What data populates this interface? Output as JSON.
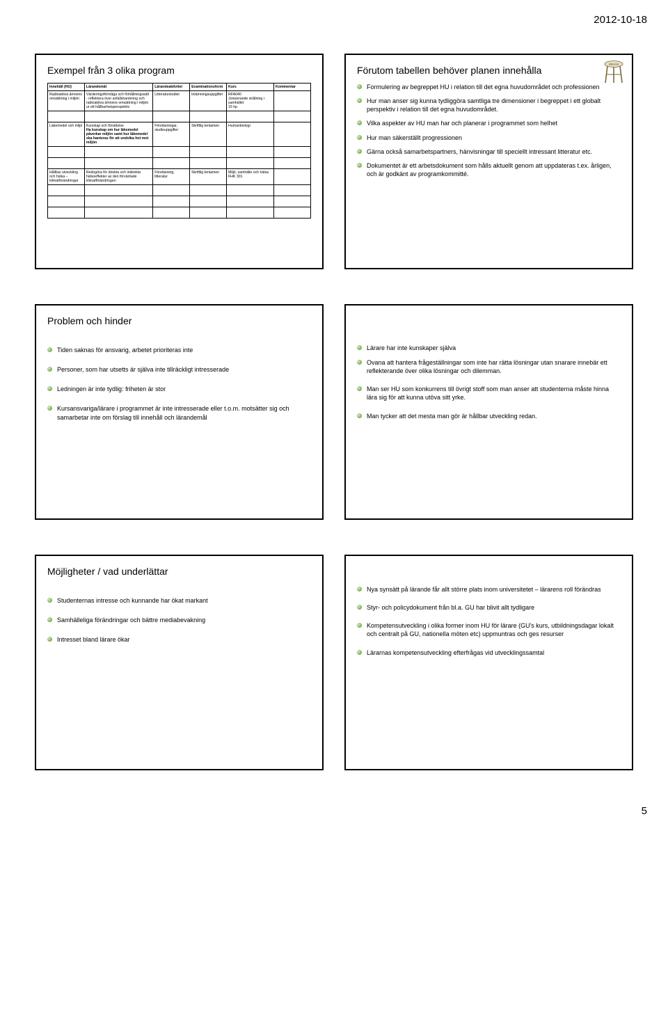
{
  "header": {
    "date": "2012-10-18"
  },
  "footer": {
    "page": "5"
  },
  "slide1": {
    "title": "Exempel från 3 olika program",
    "columns": [
      "Innehåll (HU)",
      "Lärandemål",
      "Lärandeaktivitet",
      "Examinationsform",
      "Kurs",
      "Kommentar"
    ],
    "rows": [
      [
        "Radioaktiva ämnens omsättning i miljön",
        "Värderingsförmåga och förhållningssätt\n- reflektera över avfallshantering och radioaktiva ämnens omsättning i miljön ur ett hållbarhetsperspektiv",
        "Litteraturstudier",
        "Inlämningsuppgifter",
        "RFA040\nJoniserande strålning i samhället\n15 hp",
        ""
      ],
      [
        "",
        "",
        "",
        "",
        "",
        ""
      ],
      [
        "Läkemedel och miljö",
        "Kunskap och förståelse\nHa kunskap om hur läkemedel påverkar miljön samt hur läkemedel ska hanteras för att undvika hot mot miljön",
        "Föreläsningar, studieuppgifter",
        "Skriftlig tentamen",
        "Humanbiologi",
        ""
      ],
      [
        "",
        "",
        "",
        "",
        "",
        ""
      ],
      [
        "",
        "",
        "",
        "",
        "",
        ""
      ],
      [
        "Hållbar utveckling och hälsa – klimatförändringar",
        "Redogöra för direkta och indirekta hälsoeffekter av den förväntade klimatförändringen",
        "Föreläsning, litteratur",
        "Skriftlig tentamen",
        "Miljö, samhälle och hälsa\nFHK 301",
        ""
      ],
      [
        "",
        "",
        "",
        "",
        "",
        ""
      ],
      [
        "",
        "",
        "",
        "",
        "",
        ""
      ],
      [
        "",
        "",
        "",
        "",
        "",
        ""
      ]
    ]
  },
  "slide2": {
    "title": "Förutom tabellen behöver planen innehålla",
    "bullets": [
      "Formulering av begreppet HU i relation till det egna huvudområdet och professionen",
      "Hur man anser sig kunna tydliggöra samtliga tre dimensioner i begreppet i ett globalt perspektiv i relation till det egna huvudområdet.",
      "Vilka aspekter av HU man har och planerar i programmet som helhet",
      "Hur man säkerställt progressionen",
      "Gärna också samarbetspartners, hänvisningar till speciellt intressant litteratur etc.",
      "Dokumentet är ett arbetsdokument som hålls aktuellt genom att uppdateras t.ex. årligen, och är godkänt av programkommitté."
    ]
  },
  "slide3": {
    "title": "Problem och hinder",
    "bullets": [
      "Tiden saknas för ansvarig, arbetet prioriteras inte",
      "Personer, som har utsetts är själva inte tillräckligt intresserade",
      "Ledningen är inte tydlig: friheten är stor",
      "Kursansvariga/lärare i programmet är inte intresserade eller t.o.m. motsätter sig och samarbetar inte om förslag till innehåll och lärandemål"
    ]
  },
  "slide4": {
    "lead": "Lärare har inte kunskaper själva",
    "bullets": [
      "Ovana att hantera frågeställningar som inte har rätta lösningar utan snarare innebär ett reflekterande över olika lösningar och dilemman.",
      "Man ser HU som konkurrens till övrigt stoff som man anser att studenterna måste hinna lära sig för att kunna utöva sitt yrke.",
      "Man tycker att det mesta man gör är hållbar utveckling redan."
    ]
  },
  "slide5": {
    "title": "Möjligheter / vad underlättar",
    "bullets": [
      "Studenternas intresse och kunnande har ökat markant",
      "Samhälleliga förändringar och bättre mediabevakning",
      "Intresset bland lärare ökar"
    ]
  },
  "slide6": {
    "bullets": [
      "Nya synsätt på lärande får allt större plats inom universitetet – lärarens roll förändras",
      "Styr- och policydokument från bl.a. GU har blivit allt tydligare",
      "Kompetensutveckling i olika former inom HU för lärare (GU's kurs, utbildningsdagar lokalt och centralt på GU, nationella möten etc) uppmuntras och ges resurser",
      "Lärarnas kompetensutveckling efterfrågas vid utvecklingssamtal"
    ]
  },
  "stool_label": "Hållbarhet"
}
